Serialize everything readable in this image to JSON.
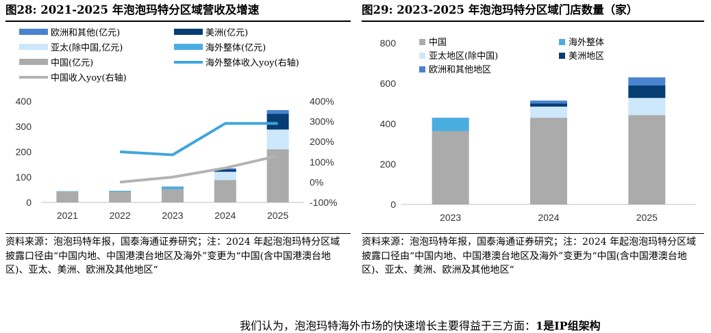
{
  "panel1": {
    "title": "图28:  2021-2025 年泡泡玛特分区域营收及增速",
    "source": "资料来源：泡泡玛特年报，国泰海通证券研究；注：2024 年起泡泡玛特分区域披露口径由“中国内地、中国港澳台地区及海外”变更为“中国(含中国港澳台地区)、亚太、美洲、欧洲及其他地区“"
  },
  "panel2": {
    "title": "图29:  2023-2025 年泡泡玛特分区域门店数量（家）",
    "source": "资料来源：泡泡玛特年报，国泰海通证券研究；注：2024 年起泡泡玛特分区域披露口径由“中国内地、中国港澳台地区及海外”变更为“中国(含中国港澳台地区)、亚太、美洲、欧洲及其他地区“"
  },
  "bottom_text": {
    "normal": "我们认为，泡泡玛特海外市场的快速增长主要得益于三方面：",
    "bold": "1是IP组架构"
  },
  "chart_data": [
    {
      "type": "bar",
      "stacked": true,
      "categories": [
        "2021",
        "2022",
        "2023",
        "2024",
        "2025"
      ],
      "ylim": [
        0,
        400
      ],
      "yticks": [
        0,
        100,
        200,
        300,
        400
      ],
      "y2lim": [
        -100,
        400
      ],
      "y2ticks": [
        "-100%",
        "0%",
        "100%",
        "200%",
        "300%",
        "400%"
      ],
      "legend_position": "top",
      "series": [
        {
          "name": "中国(亿元)",
          "color": "#ababab",
          "values": [
            42.8,
            42.2,
            52.1,
            88.5,
            210
          ]
        },
        {
          "name": "海外整体(亿元)",
          "color": "#4bace0",
          "values": [
            1.7,
            3.8,
            10.7,
            null,
            null
          ]
        },
        {
          "name": "亚太(除中国,亿元)",
          "color": "#cde7fb",
          "values": [
            null,
            null,
            null,
            32.5,
            78
          ]
        },
        {
          "name": "美洲(亿元)",
          "color": "#063e73",
          "values": [
            null,
            null,
            null,
            8.8,
            62
          ]
        },
        {
          "name": "欧洲和其他(亿元)",
          "color": "#4a83cf",
          "values": [
            null,
            null,
            null,
            4.9,
            15
          ]
        }
      ],
      "line_series": [
        {
          "name": "海外整体收入yoy(右轴)",
          "color": "#3ea6dc",
          "axis": "right",
          "values": [
            null,
            150,
            135,
            290,
            290
          ]
        },
        {
          "name": "中国收入yoy(右轴)",
          "color": "#b3b3b3",
          "axis": "right",
          "values": [
            null,
            0,
            25,
            70,
            130
          ]
        }
      ]
    },
    {
      "type": "bar",
      "stacked": true,
      "categories": [
        "2023",
        "2024",
        "2025"
      ],
      "ylim": [
        0,
        800
      ],
      "yticks": [
        0,
        200,
        400,
        600,
        800
      ],
      "legend_position": "top",
      "series": [
        {
          "name": "中国",
          "color": "#ababab",
          "values": [
            363,
            430,
            443
          ]
        },
        {
          "name": "海外整体",
          "color": "#4bace0",
          "values": [
            67,
            null,
            null
          ]
        },
        {
          "name": "亚太地区(除中国)",
          "color": "#cde7fb",
          "values": [
            null,
            55,
            85
          ]
        },
        {
          "name": "美洲地区",
          "color": "#063e73",
          "values": [
            null,
            15,
            62
          ]
        },
        {
          "name": "欧洲和其他地区",
          "color": "#4a83cf",
          "values": [
            null,
            15,
            40
          ]
        }
      ]
    }
  ]
}
